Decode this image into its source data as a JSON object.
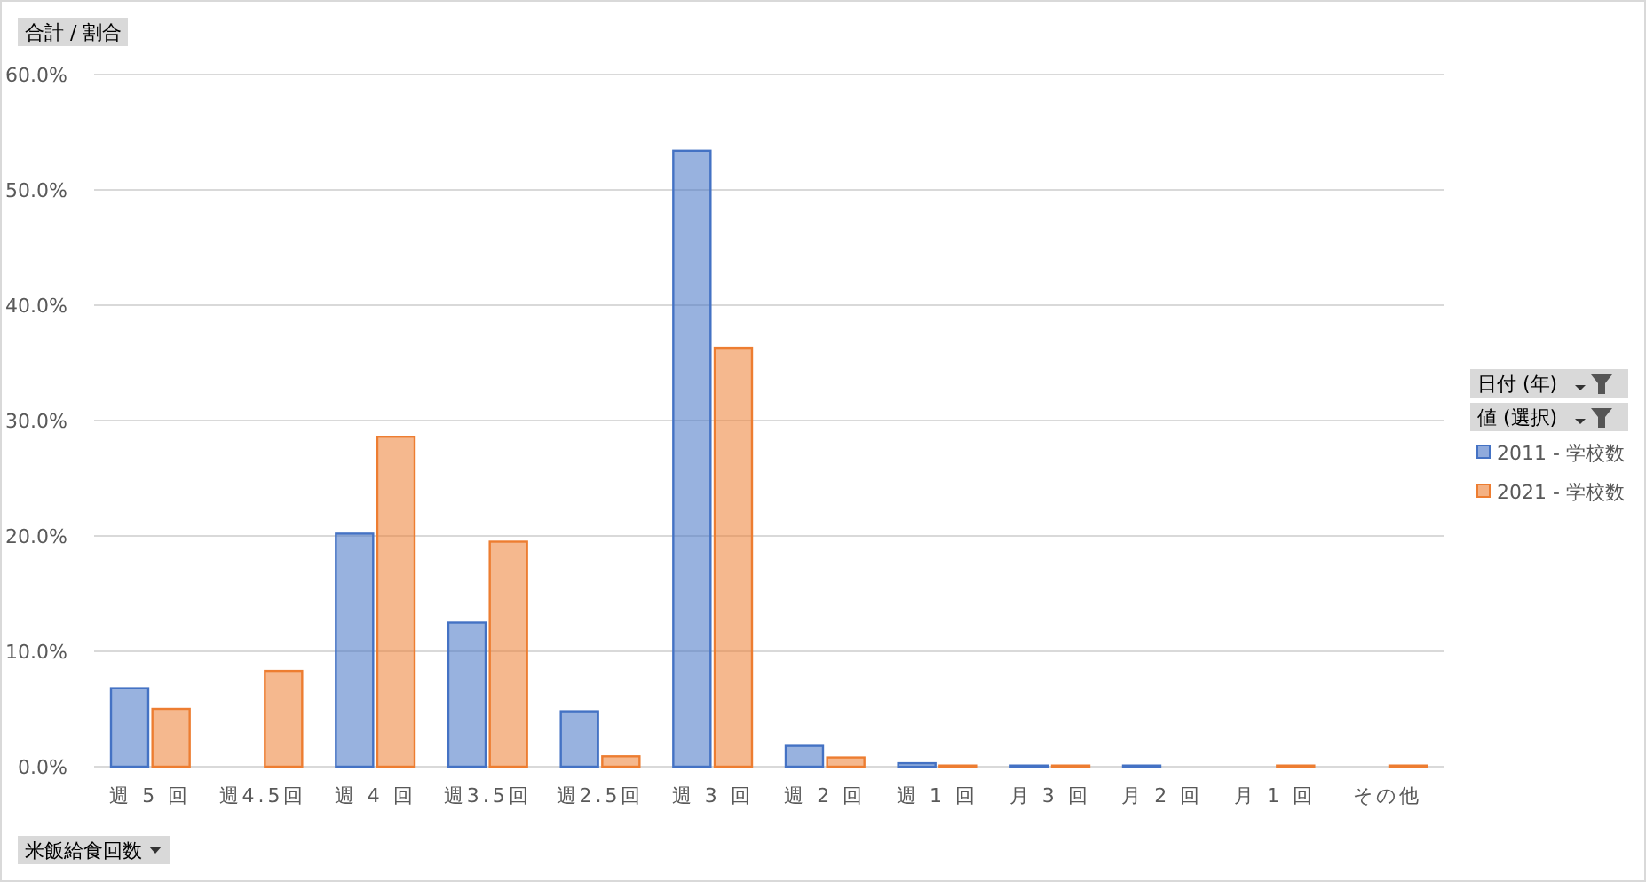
{
  "chart_data": {
    "type": "bar",
    "ylabel": "合計 / 割合",
    "xlabel": "米飯給食回数",
    "legend_title": "日付 (年)",
    "annotations": [
      "値 (選択)"
    ],
    "categories": [
      "週 5 回",
      "週4.5回",
      "週 4 回",
      "週3.5回",
      "週2.5回",
      "週 3 回",
      "週 2 回",
      "週 1 回",
      "月 3 回",
      "月 2 回",
      "月 1 回",
      "その他"
    ],
    "series": [
      {
        "name": "2011 - 学校数",
        "color": "#4472c4",
        "values": [
          6.8,
          null,
          20.2,
          12.5,
          4.8,
          53.4,
          1.8,
          0.3,
          0.1,
          0.1,
          null,
          null
        ]
      },
      {
        "name": "2021 - 学校数",
        "color": "#ed7d31",
        "values": [
          5.0,
          8.3,
          28.6,
          19.5,
          0.9,
          36.3,
          0.8,
          0.1,
          0.1,
          null,
          0.1,
          0.1
        ]
      }
    ],
    "ylim": [
      0,
      60
    ],
    "yticks": [
      {
        "value": 0,
        "label": "0.0%"
      },
      {
        "value": 10,
        "label": "10.0%"
      },
      {
        "value": 20,
        "label": "20.0%"
      },
      {
        "value": 30,
        "label": "30.0%"
      },
      {
        "value": 40,
        "label": "40.0%"
      },
      {
        "value": 50,
        "label": "50.0%"
      },
      {
        "value": 60,
        "label": "60.0%"
      }
    ],
    "grid": "y",
    "legend": "right"
  }
}
